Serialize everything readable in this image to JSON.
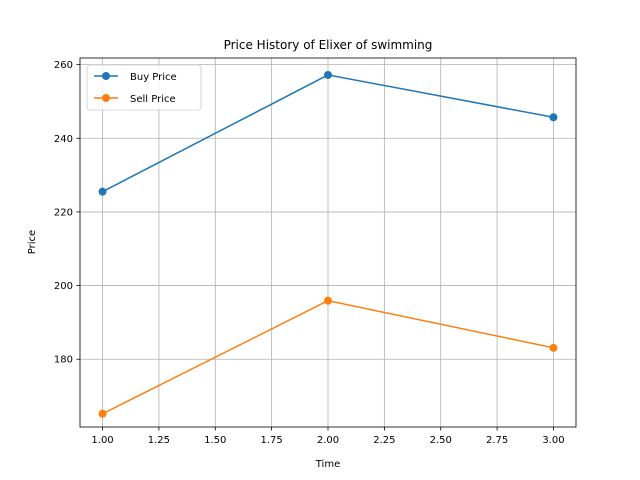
{
  "chart_data": {
    "type": "line",
    "title": "Price History of Elixer of swimming",
    "xlabel": "Time",
    "ylabel": "Price",
    "x": [
      1.0,
      2.0,
      3.0
    ],
    "series": [
      {
        "name": "Buy Price",
        "values": [
          225.5,
          257.2,
          245.7
        ],
        "color": "#1f77b4"
      },
      {
        "name": "Sell Price",
        "values": [
          165.2,
          195.9,
          183.1
        ],
        "color": "#ff7f0e"
      }
    ],
    "xlim": [
      0.9,
      3.1
    ],
    "ylim": [
      161.6,
      261.8
    ],
    "xticks": [
      "1.00",
      "1.25",
      "1.50",
      "1.75",
      "2.00",
      "2.25",
      "2.50",
      "2.75",
      "3.00"
    ],
    "yticks": [
      "180",
      "200",
      "220",
      "240",
      "260"
    ],
    "grid": true,
    "legend_position": "top-left"
  }
}
